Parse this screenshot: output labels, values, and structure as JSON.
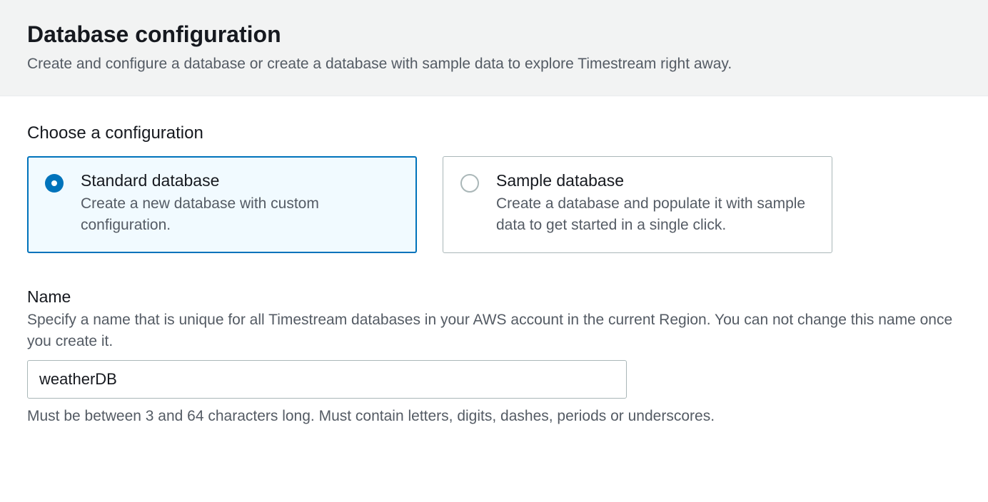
{
  "header": {
    "title": "Database configuration",
    "subtitle": "Create and configure a database or create a database with sample data to explore Timestream right away."
  },
  "configuration": {
    "section_label": "Choose a configuration",
    "options": [
      {
        "title": "Standard database",
        "description": "Create a new database with custom configuration.",
        "selected": true
      },
      {
        "title": "Sample database",
        "description": "Create a database and populate it with sample data to get started in a single click.",
        "selected": false
      }
    ]
  },
  "name_field": {
    "label": "Name",
    "help": "Specify a name that is unique for all Timestream databases in your AWS account in the current Region. You can not change this name once you create it.",
    "value": "weatherDB",
    "constraint": "Must be between 3 and 64 characters long. Must contain letters, digits, dashes, periods or underscores."
  },
  "colors": {
    "accent": "#0073bb",
    "selected_bg": "#f1faff",
    "header_bg": "#f2f3f3",
    "border_default": "#aab7b8",
    "text_primary": "#16191f",
    "text_secondary": "#545b64"
  }
}
